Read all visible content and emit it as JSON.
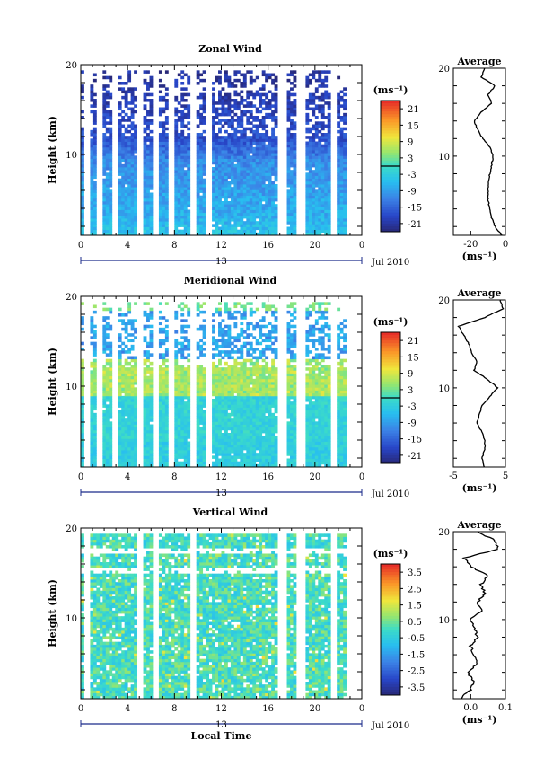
{
  "figure": {
    "date_label": "Jul 2010",
    "xlabel": "Local Time",
    "ylabel": "Height (km)",
    "unit_label": "(ms⁻¹)",
    "profile_title": "Average"
  },
  "chart_data": [
    {
      "type": "heatmap",
      "title": "Zonal Wind",
      "xlabel": "",
      "ylabel": "Height (km)",
      "x_ticks": [
        "0",
        "4",
        "8",
        "12",
        "16",
        "20",
        "0"
      ],
      "x_range": [
        0,
        24
      ],
      "day_label": "13",
      "y_range": [
        1,
        20
      ],
      "y_ticks": [
        "20",
        "10"
      ],
      "colorbar": {
        "label": "(ms⁻¹)",
        "ticks": [
          "21",
          "15",
          "9",
          "3",
          "-3",
          "-9",
          "-15",
          "-21"
        ],
        "range": [
          -24,
          24
        ],
        "zero_line": true
      },
      "field": "strong westward aloft above 11 km (-15 to -24), moderate westward -5 to -12 below, weak near surface",
      "gaps_hours": [
        0.5,
        1.7,
        3.0,
        5.1,
        6.3,
        7.7,
        9.7,
        11.0,
        17.2,
        18.8,
        21.6
      ],
      "profile": {
        "title": "Average",
        "x_ticks": [
          "-20",
          "0"
        ],
        "x_range": [
          -30,
          0
        ],
        "xlabel": "(ms⁻¹)",
        "y_ticks": [
          "20",
          "10"
        ],
        "heights": [
          1,
          2,
          3,
          4,
          5,
          6,
          7,
          8,
          9,
          10,
          11,
          12,
          13,
          14,
          15,
          16,
          17,
          18,
          19,
          20
        ],
        "values": [
          -2,
          -6,
          -8,
          -9,
          -10,
          -10,
          -10,
          -9,
          -8,
          -7,
          -9,
          -13,
          -16,
          -18,
          -14,
          -8,
          -10,
          -6,
          -14,
          -12
        ]
      }
    },
    {
      "type": "heatmap",
      "title": "Meridional Wind",
      "xlabel": "",
      "ylabel": "Height (km)",
      "x_ticks": [
        "0",
        "4",
        "8",
        "12",
        "16",
        "20",
        "0"
      ],
      "x_range": [
        0,
        24
      ],
      "day_label": "13",
      "y_range": [
        1,
        20
      ],
      "y_ticks": [
        "20",
        "10"
      ],
      "colorbar": {
        "label": "(ms⁻¹)",
        "ticks": [
          "21",
          "15",
          "9",
          "3",
          "-3",
          "-9",
          "-15",
          "-21"
        ],
        "range": [
          -24,
          24
        ],
        "zero_line": true
      },
      "field": "weak southward near surface, northward band 9-12 km (+3 to +8), southward 14-16 km, weak northward above 18 km",
      "gaps_hours": [
        0.5,
        1.7,
        3.0,
        5.1,
        6.3,
        7.7,
        9.7,
        11.0,
        17.2,
        18.8,
        21.6
      ],
      "profile": {
        "title": "Average",
        "x_ticks": [
          "-5",
          "5"
        ],
        "x_range": [
          -5,
          5
        ],
        "xlabel": "(ms⁻¹)",
        "y_ticks": [
          "20",
          "10"
        ],
        "heights": [
          1,
          2,
          3,
          4,
          5,
          6,
          7,
          8,
          9,
          10,
          11,
          12,
          13,
          14,
          15,
          16,
          17,
          18,
          19,
          20
        ],
        "values": [
          1,
          0.5,
          1,
          1,
          0.5,
          -0.5,
          0,
          0.5,
          2,
          3.5,
          1.5,
          -1,
          -0.5,
          -1.5,
          -2,
          -3,
          -4,
          1,
          4.5,
          4
        ]
      }
    },
    {
      "type": "heatmap",
      "title": "Vertical Wind",
      "xlabel": "Local Time",
      "ylabel": "Height (km)",
      "x_ticks": [
        "0",
        "4",
        "8",
        "12",
        "16",
        "20",
        "0"
      ],
      "x_range": [
        0,
        24
      ],
      "day_label": "13",
      "y_range": [
        1,
        20
      ],
      "y_ticks": [
        "20",
        "10"
      ],
      "colorbar": {
        "label": "(ms⁻¹)",
        "ticks": [
          "3.5",
          "2.5",
          "1.5",
          "0.5",
          "-0.5",
          "-1.5",
          "-2.5",
          "-3.5"
        ],
        "range": [
          -4,
          4
        ],
        "zero_line": false
      },
      "field": "mostly near zero (-0.5 to 0.5), patchy",
      "gaps_hours": [
        0.5,
        5.1,
        6.3,
        9.7,
        17.2,
        18.8,
        21.6
      ],
      "profile": {
        "title": "Average",
        "x_ticks": [
          "0.0",
          "0.1"
        ],
        "x_range": [
          -0.05,
          0.1
        ],
        "xlabel": "(ms⁻¹)",
        "y_ticks": [
          "20",
          "10"
        ],
        "heights": [
          1,
          2,
          3,
          4,
          5,
          6,
          7,
          8,
          9,
          10,
          11,
          12,
          13,
          14,
          15,
          16,
          17,
          18,
          19,
          20
        ],
        "values": [
          -0.03,
          0,
          0.01,
          -0.01,
          0.02,
          0.01,
          0,
          0.02,
          0.01,
          0,
          0.03,
          0.02,
          0.04,
          0.03,
          0.05,
          0,
          -0.02,
          0.08,
          0.07,
          0.02
        ]
      }
    }
  ]
}
